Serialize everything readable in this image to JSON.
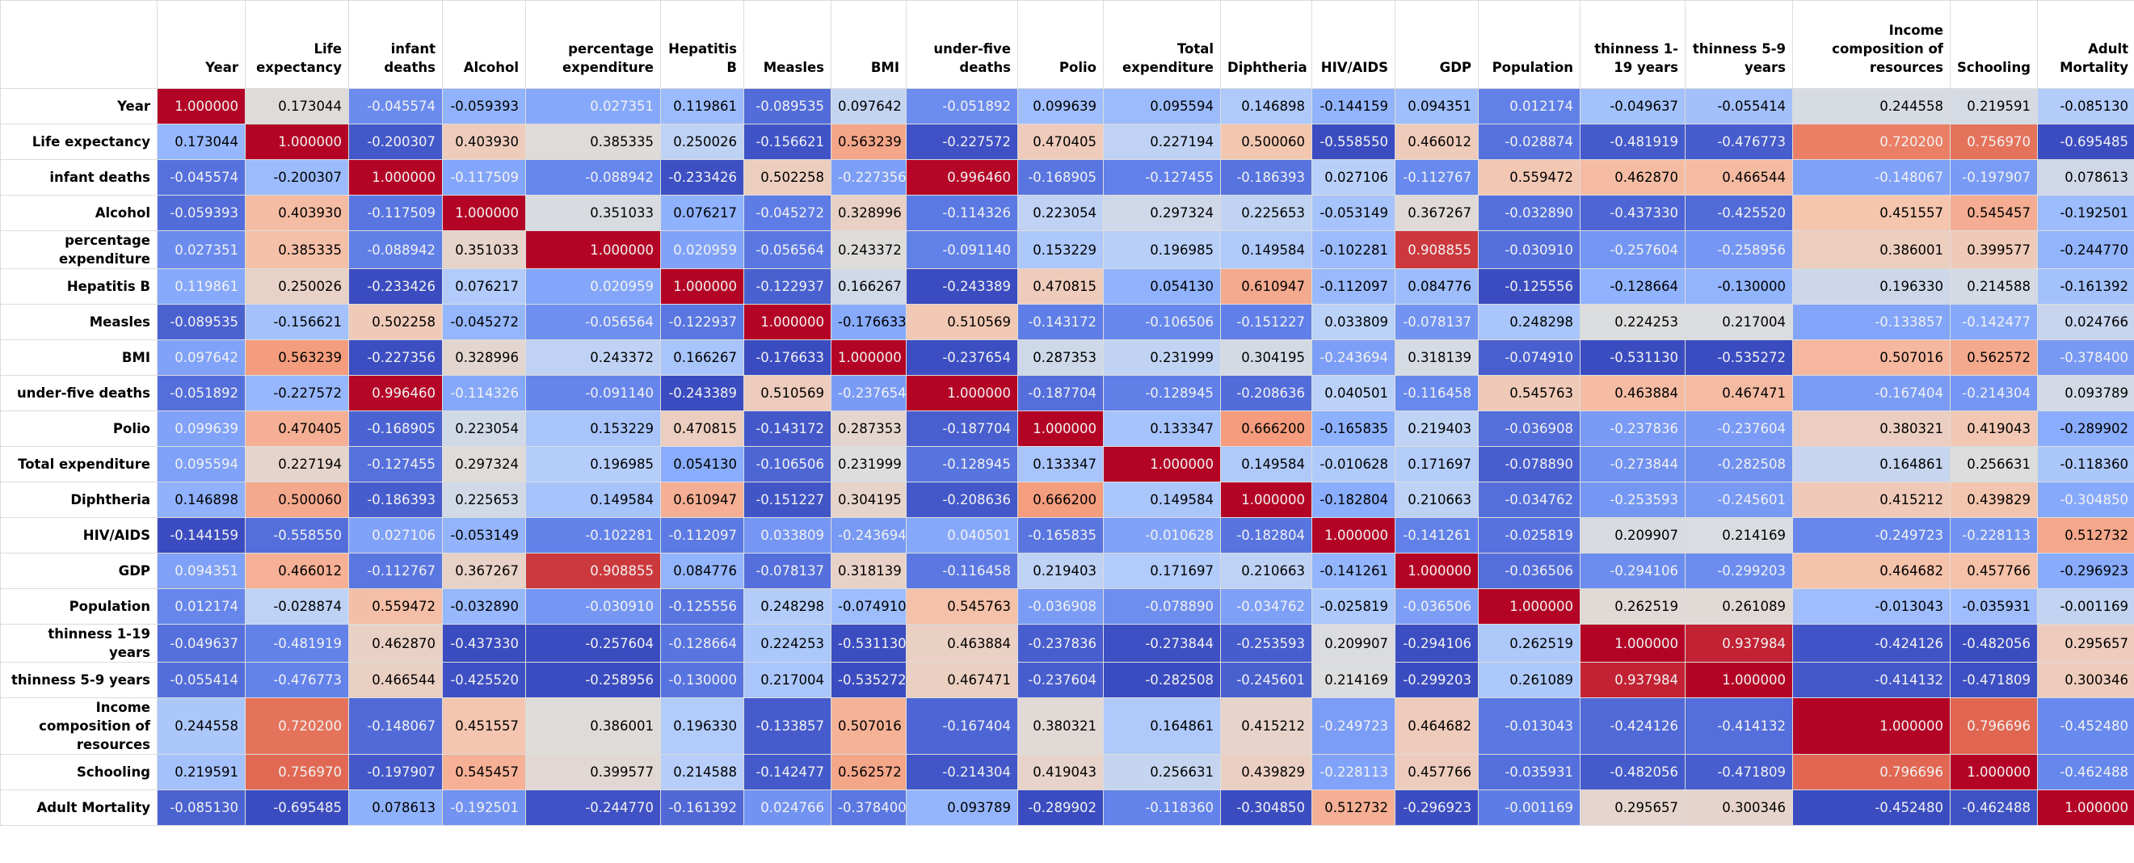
{
  "table": {
    "columns": [
      "Year",
      "Life expectancy",
      "infant deaths",
      "Alcohol",
      "percentage expenditure",
      "Hepatitis B",
      "Measles",
      "BMI",
      "under-five deaths",
      "Polio",
      "Total expenditure",
      "Diphtheria",
      "HIV/AIDS",
      "GDP",
      "Population",
      "thinness 1-19 years",
      "thinness 5-9 years",
      "Income composition of resources",
      "Schooling",
      "Adult Mortality"
    ],
    "rows": [
      {
        "label": "Year",
        "values": [
          "1.000000",
          "0.173044",
          "-0.045574",
          "-0.059393",
          "0.027351",
          "0.119861",
          "-0.089535",
          "0.097642",
          "-0.051892",
          "0.099639",
          "0.095594",
          "0.146898",
          "-0.144159",
          "0.094351",
          "0.012174",
          "-0.049637",
          "-0.055414",
          "0.244558",
          "0.219591",
          "-0.085130"
        ]
      },
      {
        "label": "Life expectancy",
        "values": [
          "0.173044",
          "1.000000",
          "-0.200307",
          "0.403930",
          "0.385335",
          "0.250026",
          "-0.156621",
          "0.563239",
          "-0.227572",
          "0.470405",
          "0.227194",
          "0.500060",
          "-0.558550",
          "0.466012",
          "-0.028874",
          "-0.481919",
          "-0.476773",
          "0.720200",
          "0.756970",
          "-0.695485"
        ]
      },
      {
        "label": "infant deaths",
        "values": [
          "-0.045574",
          "-0.200307",
          "1.000000",
          "-0.117509",
          "-0.088942",
          "-0.233426",
          "0.502258",
          "-0.227356",
          "0.996460",
          "-0.168905",
          "-0.127455",
          "-0.186393",
          "0.027106",
          "-0.112767",
          "0.559472",
          "0.462870",
          "0.466544",
          "-0.148067",
          "-0.197907",
          "0.078613"
        ]
      },
      {
        "label": "Alcohol",
        "values": [
          "-0.059393",
          "0.403930",
          "-0.117509",
          "1.000000",
          "0.351033",
          "0.076217",
          "-0.045272",
          "0.328996",
          "-0.114326",
          "0.223054",
          "0.297324",
          "0.225653",
          "-0.053149",
          "0.367267",
          "-0.032890",
          "-0.437330",
          "-0.425520",
          "0.451557",
          "0.545457",
          "-0.192501"
        ]
      },
      {
        "label": "percentage expenditure",
        "values": [
          "0.027351",
          "0.385335",
          "-0.088942",
          "0.351033",
          "1.000000",
          "0.020959",
          "-0.056564",
          "0.243372",
          "-0.091140",
          "0.153229",
          "0.196985",
          "0.149584",
          "-0.102281",
          "0.908855",
          "-0.030910",
          "-0.257604",
          "-0.258956",
          "0.386001",
          "0.399577",
          "-0.244770"
        ]
      },
      {
        "label": "Hepatitis B",
        "values": [
          "0.119861",
          "0.250026",
          "-0.233426",
          "0.076217",
          "0.020959",
          "1.000000",
          "-0.122937",
          "0.166267",
          "-0.243389",
          "0.470815",
          "0.054130",
          "0.610947",
          "-0.112097",
          "0.084776",
          "-0.125556",
          "-0.128664",
          "-0.130000",
          "0.196330",
          "0.214588",
          "-0.161392"
        ]
      },
      {
        "label": "Measles",
        "values": [
          "-0.089535",
          "-0.156621",
          "0.502258",
          "-0.045272",
          "-0.056564",
          "-0.122937",
          "1.000000",
          "-0.176633",
          "0.510569",
          "-0.143172",
          "-0.106506",
          "-0.151227",
          "0.033809",
          "-0.078137",
          "0.248298",
          "0.224253",
          "0.217004",
          "-0.133857",
          "-0.142477",
          "0.024766"
        ]
      },
      {
        "label": "BMI",
        "values": [
          "0.097642",
          "0.563239",
          "-0.227356",
          "0.328996",
          "0.243372",
          "0.166267",
          "-0.176633",
          "1.000000",
          "-0.237654",
          "0.287353",
          "0.231999",
          "0.304195",
          "-0.243694",
          "0.318139",
          "-0.074910",
          "-0.531130",
          "-0.535272",
          "0.507016",
          "0.562572",
          "-0.378400"
        ]
      },
      {
        "label": "under-five deaths",
        "values": [
          "-0.051892",
          "-0.227572",
          "0.996460",
          "-0.114326",
          "-0.091140",
          "-0.243389",
          "0.510569",
          "-0.237654",
          "1.000000",
          "-0.187704",
          "-0.128945",
          "-0.208636",
          "0.040501",
          "-0.116458",
          "0.545763",
          "0.463884",
          "0.467471",
          "-0.167404",
          "-0.214304",
          "0.093789"
        ]
      },
      {
        "label": "Polio",
        "values": [
          "0.099639",
          "0.470405",
          "-0.168905",
          "0.223054",
          "0.153229",
          "0.470815",
          "-0.143172",
          "0.287353",
          "-0.187704",
          "1.000000",
          "0.133347",
          "0.666200",
          "-0.165835",
          "0.219403",
          "-0.036908",
          "-0.237836",
          "-0.237604",
          "0.380321",
          "0.419043",
          "-0.289902"
        ]
      },
      {
        "label": "Total expenditure",
        "values": [
          "0.095594",
          "0.227194",
          "-0.127455",
          "0.297324",
          "0.196985",
          "0.054130",
          "-0.106506",
          "0.231999",
          "-0.128945",
          "0.133347",
          "1.000000",
          "0.149584",
          "-0.010628",
          "0.171697",
          "-0.078890",
          "-0.273844",
          "-0.282508",
          "0.164861",
          "0.256631",
          "-0.118360"
        ]
      },
      {
        "label": "Diphtheria",
        "values": [
          "0.146898",
          "0.500060",
          "-0.186393",
          "0.225653",
          "0.149584",
          "0.610947",
          "-0.151227",
          "0.304195",
          "-0.208636",
          "0.666200",
          "0.149584",
          "1.000000",
          "-0.182804",
          "0.210663",
          "-0.034762",
          "-0.253593",
          "-0.245601",
          "0.415212",
          "0.439829",
          "-0.304850"
        ]
      },
      {
        "label": "HIV/AIDS",
        "values": [
          "-0.144159",
          "-0.558550",
          "0.027106",
          "-0.053149",
          "-0.102281",
          "-0.112097",
          "0.033809",
          "-0.243694",
          "0.040501",
          "-0.165835",
          "-0.010628",
          "-0.182804",
          "1.000000",
          "-0.141261",
          "-0.025819",
          "0.209907",
          "0.214169",
          "-0.249723",
          "-0.228113",
          "0.512732"
        ]
      },
      {
        "label": "GDP",
        "values": [
          "0.094351",
          "0.466012",
          "-0.112767",
          "0.367267",
          "0.908855",
          "0.084776",
          "-0.078137",
          "0.318139",
          "-0.116458",
          "0.219403",
          "0.171697",
          "0.210663",
          "-0.141261",
          "1.000000",
          "-0.036506",
          "-0.294106",
          "-0.299203",
          "0.464682",
          "0.457766",
          "-0.296923"
        ]
      },
      {
        "label": "Population",
        "values": [
          "0.012174",
          "-0.028874",
          "0.559472",
          "-0.032890",
          "-0.030910",
          "-0.125556",
          "0.248298",
          "-0.074910",
          "0.545763",
          "-0.036908",
          "-0.078890",
          "-0.034762",
          "-0.025819",
          "-0.036506",
          "1.000000",
          "0.262519",
          "0.261089",
          "-0.013043",
          "-0.035931",
          "-0.001169"
        ]
      },
      {
        "label": "thinness 1-19 years",
        "values": [
          "-0.049637",
          "-0.481919",
          "0.462870",
          "-0.437330",
          "-0.257604",
          "-0.128664",
          "0.224253",
          "-0.531130",
          "0.463884",
          "-0.237836",
          "-0.273844",
          "-0.253593",
          "0.209907",
          "-0.294106",
          "0.262519",
          "1.000000",
          "0.937984",
          "-0.424126",
          "-0.482056",
          "0.295657"
        ]
      },
      {
        "label": "thinness 5-9 years",
        "values": [
          "-0.055414",
          "-0.476773",
          "0.466544",
          "-0.425520",
          "-0.258956",
          "-0.130000",
          "0.217004",
          "-0.535272",
          "0.467471",
          "-0.237604",
          "-0.282508",
          "-0.245601",
          "0.214169",
          "-0.299203",
          "0.261089",
          "0.937984",
          "1.000000",
          "-0.414132",
          "-0.471809",
          "0.300346"
        ]
      },
      {
        "label": "Income composition of resources",
        "values": [
          "0.244558",
          "0.720200",
          "-0.148067",
          "0.451557",
          "0.386001",
          "0.196330",
          "-0.133857",
          "0.507016",
          "-0.167404",
          "0.380321",
          "0.164861",
          "0.415212",
          "-0.249723",
          "0.464682",
          "-0.013043",
          "-0.424126",
          "-0.414132",
          "1.000000",
          "0.796696",
          "-0.452480"
        ]
      },
      {
        "label": "Schooling",
        "values": [
          "0.219591",
          "0.756970",
          "-0.197907",
          "0.545457",
          "0.399577",
          "0.214588",
          "-0.142477",
          "0.562572",
          "-0.214304",
          "0.419043",
          "0.256631",
          "0.439829",
          "-0.228113",
          "0.457766",
          "-0.035931",
          "-0.482056",
          "-0.471809",
          "0.796696",
          "1.000000",
          "-0.462488"
        ]
      },
      {
        "label": "Adult Mortality",
        "values": [
          "-0.085130",
          "-0.695485",
          "0.078613",
          "-0.192501",
          "-0.244770",
          "-0.161392",
          "0.024766",
          "-0.378400",
          "0.093789",
          "-0.289902",
          "-0.118360",
          "-0.304850",
          "0.512732",
          "-0.296923",
          "-0.001169",
          "0.295657",
          "0.300346",
          "-0.452480",
          "-0.462488",
          "1.000000"
        ]
      }
    ]
  }
}
